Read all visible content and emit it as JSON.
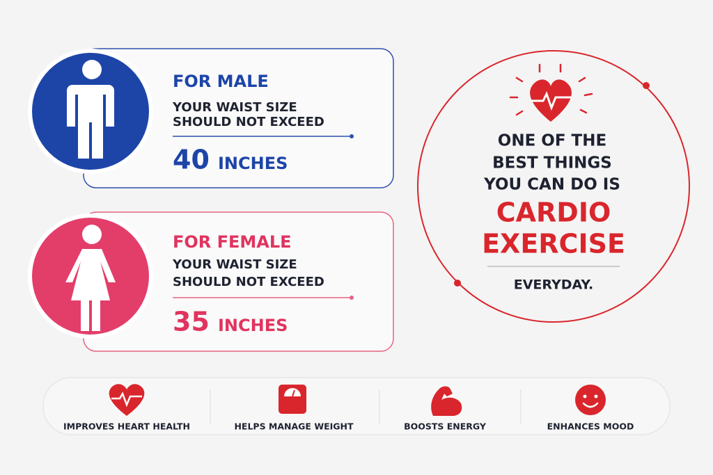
{
  "male": {
    "title": "FOR MALE",
    "line1": "YOUR WAIST SIZE",
    "line2": "SHOULD NOT EXCEED",
    "number": "40",
    "unit": "INCHES"
  },
  "female": {
    "title": "FOR FEMALE",
    "line1": "YOUR WAIST SIZE",
    "line2": "SHOULD NOT EXCEED",
    "number": "35",
    "unit": "INCHES"
  },
  "callout": {
    "lines": [
      "ONE OF THE",
      "BEST THINGS",
      "YOU CAN DO IS"
    ],
    "highlight": [
      "CARDIO",
      "EXERCISE"
    ],
    "footer": "EVERYDAY."
  },
  "benefits": [
    "IMPROVES HEART HEALTH",
    "HELPS MANAGE WEIGHT",
    "BOOSTS ENERGY",
    "ENHANCES MOOD"
  ]
}
